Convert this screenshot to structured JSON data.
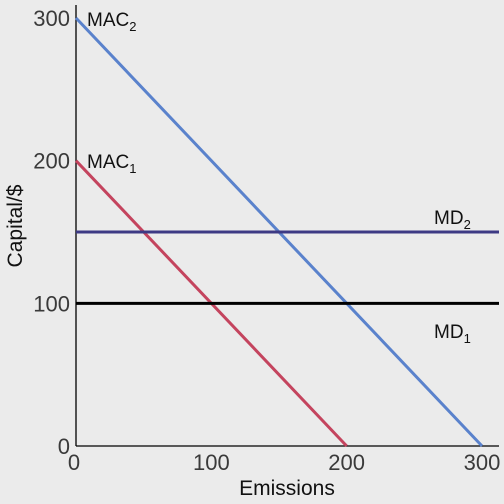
{
  "chart_data": {
    "type": "line",
    "title": "",
    "xlabel": "Emissions",
    "ylabel": "Capital/$",
    "xlim": [
      0,
      300
    ],
    "ylim": [
      0,
      300
    ],
    "xticks": [
      "0",
      "100",
      "200",
      "300"
    ],
    "yticks": [
      "0",
      "100",
      "200",
      "300"
    ],
    "grid": false,
    "series": [
      {
        "name": "MAC2",
        "label_main": "MAC",
        "label_sub": "2",
        "color": "#5a82cc",
        "x": [
          0,
          300
        ],
        "y": [
          300,
          0
        ]
      },
      {
        "name": "MAC1",
        "label_main": "MAC",
        "label_sub": "1",
        "color": "#c4445e",
        "x": [
          0,
          200
        ],
        "y": [
          200,
          0
        ]
      },
      {
        "name": "MD2",
        "label_main": "MD",
        "label_sub": "2",
        "color": "#3d3a84",
        "x": [
          0,
          300
        ],
        "y": [
          150,
          150
        ]
      },
      {
        "name": "MD1",
        "label_main": "MD",
        "label_sub": "1",
        "color": "#000000",
        "x": [
          0,
          300
        ],
        "y": [
          100,
          100
        ]
      }
    ]
  }
}
